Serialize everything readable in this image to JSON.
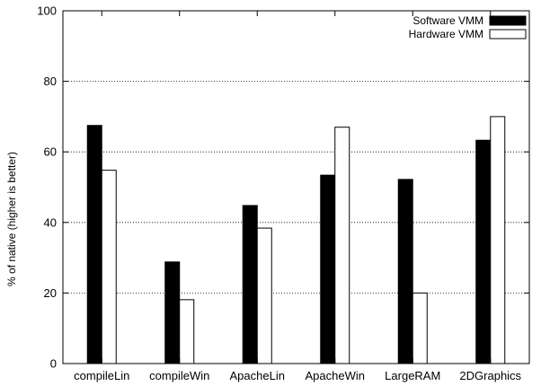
{
  "chart_data": {
    "type": "bar",
    "title": "",
    "xlabel": "",
    "ylabel": "% of native (higher is better)",
    "ylim": [
      0,
      100
    ],
    "yticks": [
      0,
      20,
      40,
      60,
      80,
      100
    ],
    "categories": [
      "compileLin",
      "compileWin",
      "ApacheLin",
      "ApacheWin",
      "LargeRAM",
      "2DGraphics"
    ],
    "series": [
      {
        "name": "Software VMM",
        "values": [
          67.5,
          28.8,
          44.8,
          53.4,
          52.2,
          63.3
        ],
        "fill": "#000000"
      },
      {
        "name": "Hardware VMM",
        "values": [
          54.8,
          18.1,
          38.4,
          67.0,
          20.0,
          70.0
        ],
        "fill": "#ffffff"
      }
    ],
    "grid": "horizontal-dotted",
    "legend_position": "top-right"
  }
}
